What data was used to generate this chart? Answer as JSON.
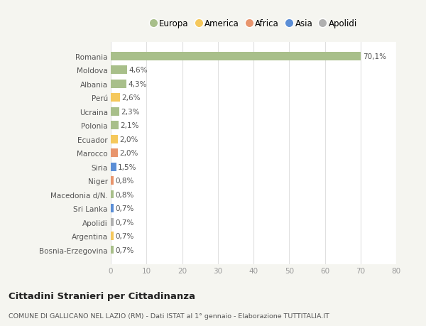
{
  "countries": [
    "Romania",
    "Moldova",
    "Albania",
    "Perú",
    "Ucraina",
    "Polonia",
    "Ecuador",
    "Marocco",
    "Siria",
    "Niger",
    "Macedonia d/N.",
    "Sri Lanka",
    "Apolidi",
    "Argentina",
    "Bosnia-Erzegovina"
  ],
  "values": [
    70.1,
    4.6,
    4.3,
    2.6,
    2.3,
    2.1,
    2.0,
    2.0,
    1.5,
    0.8,
    0.8,
    0.7,
    0.7,
    0.7,
    0.7
  ],
  "labels": [
    "70,1%",
    "4,6%",
    "4,3%",
    "2,6%",
    "2,3%",
    "2,1%",
    "2,0%",
    "2,0%",
    "1,5%",
    "0,8%",
    "0,8%",
    "0,7%",
    "0,7%",
    "0,7%",
    "0,7%"
  ],
  "colors": [
    "#a8bf8a",
    "#a8bf8a",
    "#a8bf8a",
    "#f5c85c",
    "#a8bf8a",
    "#a8bf8a",
    "#f5c85c",
    "#e8956d",
    "#5b8ed6",
    "#e8956d",
    "#a8bf8a",
    "#5b8ed6",
    "#b0b0b0",
    "#f5c85c",
    "#a8bf8a"
  ],
  "legend": [
    {
      "label": "Europa",
      "color": "#a8bf8a"
    },
    {
      "label": "America",
      "color": "#f5c85c"
    },
    {
      "label": "Africa",
      "color": "#e8956d"
    },
    {
      "label": "Asia",
      "color": "#5b8ed6"
    },
    {
      "label": "Apolidi",
      "color": "#b0b0b0"
    }
  ],
  "xlim": [
    0,
    80
  ],
  "xticks": [
    0,
    10,
    20,
    30,
    40,
    50,
    60,
    70,
    80
  ],
  "title": "Cittadini Stranieri per Cittadinanza",
  "subtitle": "COMUNE DI GALLICANO NEL LAZIO (RM) - Dati ISTAT al 1° gennaio - Elaborazione TUTTITALIA.IT",
  "bg_color": "#f5f5f0",
  "plot_bg_color": "#ffffff",
  "grid_color": "#e0e0e0",
  "label_color": "#555555",
  "tick_color": "#999999"
}
